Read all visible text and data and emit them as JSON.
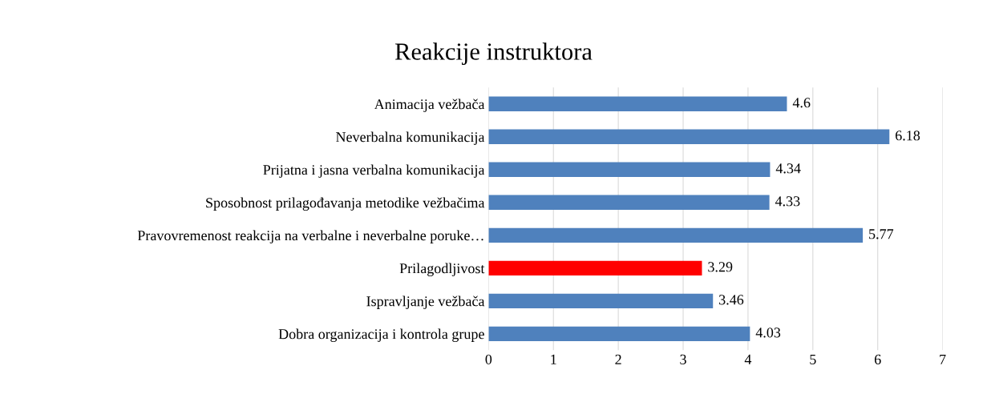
{
  "chart_data": {
    "type": "bar",
    "orientation": "horizontal",
    "title": "Reakcije instruktora",
    "categories": [
      "Animacija vežbača",
      "Neverbalna komunikacija",
      "Prijatna i jasna verbalna komunikacija",
      "Sposobnost prilagođavanja metodike vežbačima",
      "Pravovremenost reakcija na verbalne i neverbalne poruke…",
      "Prilagodljivost",
      "Ispravljanje vežbača",
      "Dobra organizacija i kontrola grupe"
    ],
    "values": [
      4.6,
      6.18,
      4.34,
      4.33,
      5.77,
      3.29,
      3.46,
      4.03
    ],
    "colors": [
      "#4f81bd",
      "#4f81bd",
      "#4f81bd",
      "#4f81bd",
      "#4f81bd",
      "#ff0000",
      "#4f81bd",
      "#4f81bd"
    ],
    "xlim": [
      0,
      7
    ],
    "xticks": [
      0,
      1,
      2,
      3,
      4,
      5,
      6,
      7
    ],
    "grid": "x",
    "data_labels": true
  }
}
